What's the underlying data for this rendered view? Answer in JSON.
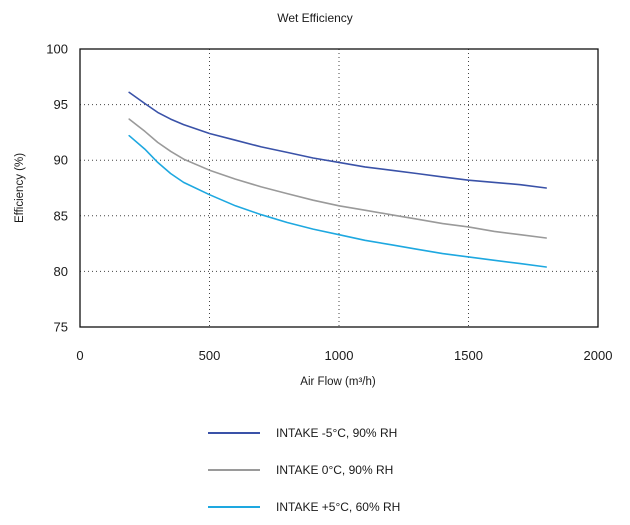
{
  "chart_data": {
    "type": "line",
    "title": "Wet Efficiency",
    "xlabel": "Air Flow (m³/h)",
    "ylabel": "Efficiency (%)",
    "xlim": [
      0,
      2000
    ],
    "ylim": [
      75,
      100
    ],
    "x_ticks": [
      0,
      500,
      1000,
      1500,
      2000
    ],
    "y_ticks": [
      75,
      80,
      85,
      90,
      95,
      100
    ],
    "x_tick_labels": [
      "0",
      "500",
      "1000",
      "1500",
      "2000"
    ],
    "y_tick_labels": [
      "75",
      "80",
      "85",
      "90",
      "95",
      "100"
    ],
    "grid": "dotted",
    "legend_position": "bottom",
    "series": [
      {
        "name": "INTAKE -5°C, 90% RH",
        "color": "#3a52a8",
        "points": [
          [
            190,
            96.1
          ],
          [
            250,
            95.1
          ],
          [
            300,
            94.3
          ],
          [
            350,
            93.7
          ],
          [
            400,
            93.2
          ],
          [
            500,
            92.4
          ],
          [
            600,
            91.8
          ],
          [
            700,
            91.2
          ],
          [
            800,
            90.7
          ],
          [
            900,
            90.2
          ],
          [
            1000,
            89.8
          ],
          [
            1100,
            89.4
          ],
          [
            1200,
            89.1
          ],
          [
            1300,
            88.8
          ],
          [
            1400,
            88.5
          ],
          [
            1500,
            88.2
          ],
          [
            1600,
            88.0
          ],
          [
            1700,
            87.8
          ],
          [
            1800,
            87.5
          ]
        ]
      },
      {
        "name": "INTAKE 0°C, 90% RH",
        "color": "#9a9a9a",
        "points": [
          [
            190,
            93.7
          ],
          [
            250,
            92.6
          ],
          [
            300,
            91.6
          ],
          [
            350,
            90.8
          ],
          [
            400,
            90.1
          ],
          [
            500,
            89.1
          ],
          [
            600,
            88.3
          ],
          [
            700,
            87.6
          ],
          [
            800,
            87.0
          ],
          [
            900,
            86.4
          ],
          [
            1000,
            85.9
          ],
          [
            1100,
            85.5
          ],
          [
            1200,
            85.1
          ],
          [
            1300,
            84.7
          ],
          [
            1400,
            84.3
          ],
          [
            1500,
            84.0
          ],
          [
            1600,
            83.6
          ],
          [
            1700,
            83.3
          ],
          [
            1800,
            83.0
          ]
        ]
      },
      {
        "name": "INTAKE +5°C, 60% RH",
        "color": "#1ea8e0",
        "points": [
          [
            190,
            92.2
          ],
          [
            250,
            91.0
          ],
          [
            300,
            89.8
          ],
          [
            350,
            88.8
          ],
          [
            400,
            88.0
          ],
          [
            500,
            86.9
          ],
          [
            600,
            85.9
          ],
          [
            700,
            85.1
          ],
          [
            800,
            84.4
          ],
          [
            900,
            83.8
          ],
          [
            1000,
            83.3
          ],
          [
            1100,
            82.8
          ],
          [
            1200,
            82.4
          ],
          [
            1300,
            82.0
          ],
          [
            1400,
            81.6
          ],
          [
            1500,
            81.3
          ],
          [
            1600,
            81.0
          ],
          [
            1700,
            80.7
          ],
          [
            1800,
            80.4
          ]
        ]
      }
    ]
  }
}
